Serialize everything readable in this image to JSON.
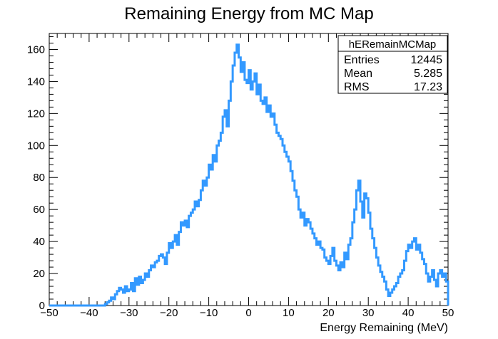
{
  "chart_data": {
    "type": "histogram",
    "title": "Remaining Energy from MC Map",
    "xlabel": "Energy Remaining (MeV)",
    "ylabel": "",
    "xlim": [
      -50,
      50
    ],
    "ylim": [
      0,
      170
    ],
    "x_ticks": [
      -50,
      -40,
      -30,
      -20,
      -10,
      0,
      10,
      20,
      30,
      40,
      50
    ],
    "y_ticks": [
      0,
      20,
      40,
      60,
      80,
      100,
      120,
      140,
      160
    ],
    "x_tick_labels": [
      "−50",
      "−40",
      "−30",
      "−20",
      "−10",
      "0",
      "10",
      "20",
      "30",
      "40",
      "50"
    ],
    "y_tick_labels": [
      "0",
      "20",
      "40",
      "60",
      "80",
      "100",
      "120",
      "140",
      "160"
    ],
    "grid": false,
    "series": [
      {
        "color": "#3399ff",
        "x": [
          -50.0,
          -49.5,
          -49.0,
          -48.5,
          -48.0,
          -47.5,
          -47.0,
          -46.5,
          -46.0,
          -45.5,
          -45.0,
          -44.5,
          -44.0,
          -43.5,
          -43.0,
          -42.5,
          -42.0,
          -41.5,
          -41.0,
          -40.5,
          -40.0,
          -39.5,
          -39.0,
          -38.5,
          -38.0,
          -37.5,
          -37.0,
          -36.5,
          -36.0,
          -35.5,
          -35.0,
          -34.5,
          -34.0,
          -33.5,
          -33.0,
          -32.5,
          -32.0,
          -31.5,
          -31.0,
          -30.5,
          -30.0,
          -29.5,
          -29.0,
          -28.5,
          -28.0,
          -27.5,
          -27.0,
          -26.5,
          -26.0,
          -25.5,
          -25.0,
          -24.5,
          -24.0,
          -23.5,
          -23.0,
          -22.5,
          -22.0,
          -21.5,
          -21.0,
          -20.5,
          -20.0,
          -19.5,
          -19.0,
          -18.5,
          -18.0,
          -17.5,
          -17.0,
          -16.5,
          -16.0,
          -15.5,
          -15.0,
          -14.5,
          -14.0,
          -13.5,
          -13.0,
          -12.5,
          -12.0,
          -11.5,
          -11.0,
          -10.5,
          -10.0,
          -9.5,
          -9.0,
          -8.5,
          -8.0,
          -7.5,
          -7.0,
          -6.5,
          -6.0,
          -5.5,
          -5.0,
          -4.5,
          -4.0,
          -3.5,
          -3.0,
          -2.5,
          -2.0,
          -1.5,
          -1.0,
          -0.5,
          0.0,
          0.5,
          1.0,
          1.5,
          2.0,
          2.5,
          3.0,
          3.5,
          4.0,
          4.5,
          5.0,
          5.5,
          6.0,
          6.5,
          7.0,
          7.5,
          8.0,
          8.5,
          9.0,
          9.5,
          10.0,
          10.5,
          11.0,
          11.5,
          12.0,
          12.5,
          13.0,
          13.5,
          14.0,
          14.5,
          15.0,
          15.5,
          16.0,
          16.5,
          17.0,
          17.5,
          18.0,
          18.5,
          19.0,
          19.5,
          20.0,
          20.5,
          21.0,
          21.5,
          22.0,
          22.5,
          23.0,
          23.5,
          24.0,
          24.5,
          25.0,
          25.5,
          26.0,
          26.5,
          27.0,
          27.5,
          28.0,
          28.5,
          29.0,
          29.5,
          30.0,
          30.5,
          31.0,
          31.5,
          32.0,
          32.5,
          33.0,
          33.5,
          34.0,
          34.5,
          35.0,
          35.5,
          36.0,
          36.5,
          37.0,
          37.5,
          38.0,
          38.5,
          39.0,
          39.5,
          40.0,
          40.5,
          41.0,
          41.5,
          42.0,
          42.5,
          43.0,
          43.5,
          44.0,
          44.5,
          45.0,
          45.5,
          46.0,
          46.5,
          47.0,
          47.5,
          48.0,
          48.5,
          49.0,
          49.5
        ],
        "values": [
          0,
          0,
          0,
          0,
          0,
          0,
          0,
          0,
          0,
          0,
          0,
          0,
          0,
          0,
          0,
          0,
          0,
          0,
          0,
          0,
          0,
          0,
          0,
          0,
          0,
          0,
          0,
          0,
          1,
          2,
          3,
          5,
          4,
          7,
          9,
          11,
          10,
          8,
          12,
          9,
          10,
          14,
          9,
          17,
          13,
          18,
          14,
          16,
          20,
          18,
          22,
          25,
          24,
          27,
          28,
          31,
          32,
          30,
          26,
          33,
          39,
          36,
          40,
          44,
          38,
          46,
          52,
          50,
          53,
          49,
          56,
          58,
          60,
          65,
          62,
          66,
          72,
          78,
          75,
          80,
          88,
          85,
          94,
          90,
          100,
          103,
          108,
          118,
          122,
          112,
          128,
          140,
          150,
          158,
          163,
          155,
          146,
          152,
          141,
          139,
          147,
          135,
          140,
          145,
          132,
          138,
          128,
          126,
          130,
          121,
          125,
          118,
          120,
          113,
          108,
          106,
          104,
          100,
          96,
          93,
          90,
          84,
          78,
          72,
          68,
          60,
          55,
          58,
          50,
          54,
          52,
          48,
          45,
          42,
          38,
          40,
          36,
          35,
          30,
          28,
          26,
          31,
          36,
          28,
          25,
          22,
          27,
          24,
          33,
          29,
          38,
          42,
          52,
          60,
          72,
          78,
          65,
          55,
          70,
          67,
          58,
          48,
          42,
          36,
          30,
          25,
          21,
          18,
          15,
          10,
          6,
          8,
          10,
          12,
          14,
          18,
          20,
          22,
          28,
          34,
          38,
          36,
          40,
          42,
          35,
          38,
          33,
          29,
          26,
          20,
          15,
          18,
          22,
          16,
          12,
          20,
          22,
          18,
          20,
          15
        ]
      }
    ],
    "stats_box": {
      "title": "hERemainMCMap",
      "rows": [
        {
          "label": "Entries",
          "value": "12445"
        },
        {
          "label": "Mean",
          "value": "5.285"
        },
        {
          "label": "RMS",
          "value": "17.23"
        }
      ]
    }
  }
}
